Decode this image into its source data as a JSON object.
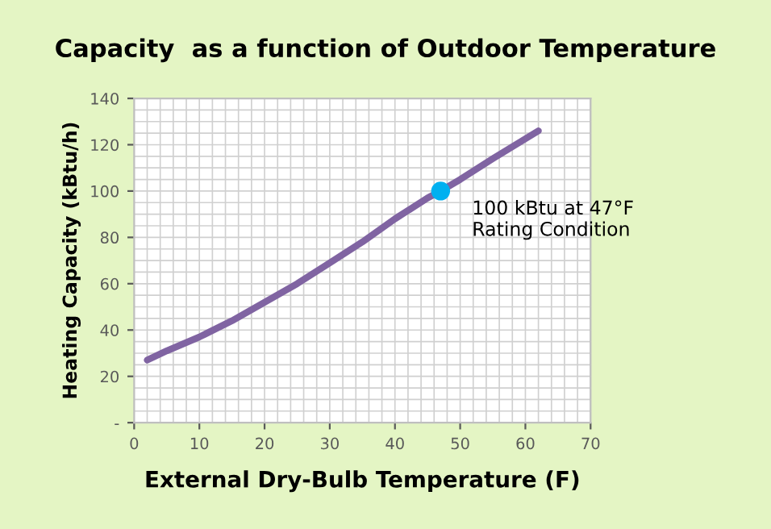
{
  "chart_data": {
    "type": "line",
    "title": "Capacity  as a function of Outdoor Temperature",
    "xlabel": "External Dry-Bulb Temperature (F)",
    "ylabel": "Heating Capacity (kBtu/h)",
    "x": [
      2,
      5,
      10,
      15,
      20,
      25,
      30,
      35,
      40,
      45,
      47,
      50,
      55,
      62
    ],
    "series": [
      {
        "color": "#8064a2",
        "values": [
          27,
          31,
          37,
          44,
          52,
          60,
          69,
          78,
          88,
          97,
          100,
          105,
          114,
          126
        ]
      },
      {
        "type": "scatter",
        "marker": "circle",
        "color": "#00b0f0",
        "x": [
          47
        ],
        "values": [
          100
        ]
      }
    ],
    "annotations": [
      {
        "text": "100 kBtu at 47°F\nRating Condition",
        "x": 47,
        "y": 100
      }
    ],
    "xlim": [
      0,
      70
    ],
    "ylim": [
      0,
      140
    ],
    "xticks": [
      0,
      10,
      20,
      30,
      40,
      50,
      60,
      70
    ],
    "yticks": [
      {
        "value": 0,
        "label": "-"
      },
      20,
      40,
      60,
      80,
      100,
      120,
      140
    ],
    "grid": true,
    "marker": "none",
    "line_style": "solid"
  }
}
